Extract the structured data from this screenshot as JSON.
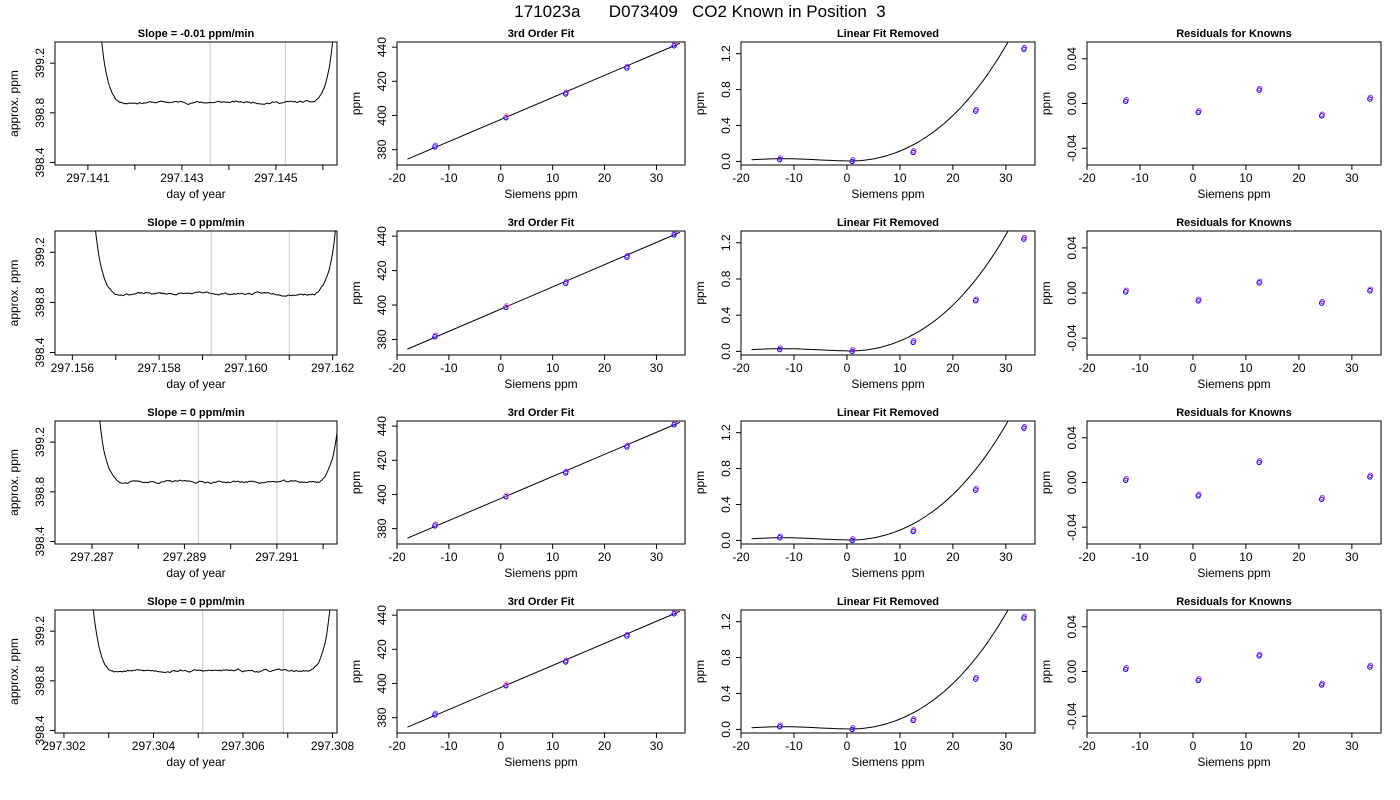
{
  "title": "171023a      D073409   CO2 Known in Position  3",
  "labels": {
    "trace_x": "day of year",
    "trace_y": "approx. ppm",
    "siemens_x": "Siemens ppm",
    "ppm_y": "ppm",
    "fit_title": "3rd Order Fit",
    "linear_title": "Linear Fit Removed",
    "resid_title": "Residuals for Knowns"
  },
  "colors": {
    "line": "#000000",
    "marker_blue": "#0000ff",
    "marker_violet": "#a020f0",
    "marker_pink": "#ff69b4",
    "vline": "#c8c8c8"
  },
  "chart_data": [
    {
      "type": "line",
      "title": "Slope =  -0.01  ppm/min",
      "xlabel": "day of year",
      "ylabel": "approx. ppm",
      "xlim": [
        297.1403,
        297.1463
      ],
      "ylim": [
        398.38,
        399.37
      ],
      "xticks": [
        297.141,
        297.143,
        297.145
      ],
      "xticks_unlabeled": [
        297.142,
        297.144,
        297.146
      ],
      "yticks": [
        398.4,
        398.8,
        399.2
      ],
      "vlines": [
        297.1436,
        297.1452
      ],
      "baseline": 398.885,
      "edge_start": 297.1417,
      "edge_end": 297.1458,
      "seed": 11
    },
    {
      "type": "line",
      "title": "Slope =  0  ppm/min",
      "xlabel": "day of year",
      "ylabel": "approx. ppm",
      "xlim": [
        297.1556,
        297.1621
      ],
      "ylim": [
        398.38,
        399.37
      ],
      "xticks": [
        297.156,
        297.158,
        297.16,
        297.162
      ],
      "xticks_unlabeled": [
        297.157,
        297.159,
        297.161
      ],
      "yticks": [
        398.4,
        398.8,
        399.2
      ],
      "vlines": [
        297.1592,
        297.161
      ],
      "baseline": 398.87,
      "edge_start": 297.157,
      "edge_end": 297.1616,
      "seed": 23
    },
    {
      "type": "line",
      "title": "Slope =  0  ppm/min",
      "xlabel": "day of year",
      "ylabel": "approx. ppm",
      "xlim": [
        297.2862,
        297.2923
      ],
      "ylim": [
        398.38,
        399.37
      ],
      "xticks": [
        297.287,
        297.289,
        297.291
      ],
      "xticks_unlabeled": [
        297.288,
        297.29,
        297.292
      ],
      "yticks": [
        398.4,
        398.8,
        399.2
      ],
      "vlines": [
        297.2893,
        297.291
      ],
      "baseline": 398.88,
      "edge_start": 297.2876,
      "edge_end": 297.2919,
      "seed": 37
    },
    {
      "type": "line",
      "title": "Slope =  0  ppm/min",
      "xlabel": "day of year",
      "ylabel": "approx. ppm",
      "xlim": [
        297.3018,
        297.3081
      ],
      "ylim": [
        398.38,
        399.37
      ],
      "xticks": [
        297.302,
        297.304,
        297.306,
        297.308
      ],
      "xticks_unlabeled": [
        297.303,
        297.305,
        297.307
      ],
      "yticks": [
        398.4,
        398.8,
        399.2
      ],
      "vlines": [
        297.3051,
        297.3069
      ],
      "baseline": 398.88,
      "edge_start": 297.3031,
      "edge_end": 297.3075,
      "seed": 53
    },
    {
      "type": "scatter",
      "title": "3rd Order Fit",
      "xlabel": "Siemens ppm",
      "ylabel": "ppm",
      "xlim": [
        -20,
        35.5
      ],
      "ylim": [
        371,
        443
      ],
      "xticks": [
        -20,
        -10,
        0,
        10,
        20,
        30
      ],
      "yticks": [
        380,
        400,
        420,
        440
      ],
      "points_x": [
        -12.7,
        1.0,
        12.5,
        24.3,
        33.4
      ],
      "points_y": [
        381.6,
        398.7,
        412.6,
        427.8,
        440.8
      ],
      "fit_x": [
        -18,
        34.5
      ],
      "fit_y": [
        374.4,
        442.2
      ]
    },
    {
      "type": "scatter",
      "title": "3rd Order Fit",
      "xlabel": "Siemens ppm",
      "ylabel": "ppm",
      "xlim": [
        -20,
        35.5
      ],
      "ylim": [
        371,
        443
      ],
      "xticks": [
        -20,
        -10,
        0,
        10,
        20,
        30
      ],
      "yticks": [
        380,
        400,
        420,
        440
      ],
      "points_x": [
        -12.7,
        1.0,
        12.5,
        24.3,
        33.4
      ],
      "points_y": [
        381.6,
        398.7,
        412.6,
        427.8,
        440.8
      ],
      "fit_x": [
        -18,
        34.5
      ],
      "fit_y": [
        374.4,
        442.2
      ]
    },
    {
      "type": "scatter",
      "title": "3rd Order Fit",
      "xlabel": "Siemens ppm",
      "ylabel": "ppm",
      "xlim": [
        -20,
        35.5
      ],
      "ylim": [
        371,
        443
      ],
      "xticks": [
        -20,
        -10,
        0,
        10,
        20,
        30
      ],
      "yticks": [
        380,
        400,
        420,
        440
      ],
      "points_x": [
        -12.7,
        1.0,
        12.5,
        24.3,
        33.4
      ],
      "points_y": [
        381.6,
        398.7,
        412.6,
        427.8,
        440.8
      ],
      "fit_x": [
        -18,
        34.5
      ],
      "fit_y": [
        374.4,
        442.2
      ]
    },
    {
      "type": "scatter",
      "title": "3rd Order Fit",
      "xlabel": "Siemens ppm",
      "ylabel": "ppm",
      "xlim": [
        -20,
        35.5
      ],
      "ylim": [
        371,
        443
      ],
      "xticks": [
        -20,
        -10,
        0,
        10,
        20,
        30
      ],
      "yticks": [
        380,
        400,
        420,
        440
      ],
      "points_x": [
        -12.7,
        1.0,
        12.5,
        24.3,
        33.4
      ],
      "points_y": [
        381.6,
        398.7,
        412.6,
        427.8,
        440.8
      ],
      "fit_x": [
        -18,
        34.5
      ],
      "fit_y": [
        374.4,
        442.2
      ]
    },
    {
      "type": "scatter",
      "title": "Linear Fit Removed",
      "xlabel": "Siemens ppm",
      "ylabel": "ppm",
      "xlim": [
        -20,
        35.5
      ],
      "ylim": [
        -0.04,
        1.33
      ],
      "xticks": [
        -20,
        -10,
        0,
        10,
        20,
        30
      ],
      "yticks": [
        0.0,
        0.4,
        0.8,
        1.2
      ],
      "points_x": [
        -12.7,
        1.0,
        12.5,
        24.3,
        33.4
      ],
      "points_y": [
        0.02,
        0.0,
        0.1,
        0.56,
        1.25
      ],
      "curve_coef": [
        0.0,
        0.001,
        0.000325
      ]
    },
    {
      "type": "scatter",
      "title": "Linear Fit Removed",
      "xlabel": "Siemens ppm",
      "ylabel": "ppm",
      "xlim": [
        -20,
        35.5
      ],
      "ylim": [
        -0.04,
        1.33
      ],
      "xticks": [
        -20,
        -10,
        0,
        10,
        20,
        30
      ],
      "yticks": [
        0.0,
        0.4,
        0.8,
        1.2
      ],
      "points_x": [
        -12.7,
        1.0,
        12.5,
        24.3,
        33.4
      ],
      "points_y": [
        0.02,
        0.0,
        0.1,
        0.56,
        1.24
      ],
      "curve_coef": [
        0.0,
        0.001,
        0.000322
      ]
    },
    {
      "type": "scatter",
      "title": "Linear Fit Removed",
      "xlabel": "Siemens ppm",
      "ylabel": "ppm",
      "xlim": [
        -20,
        35.5
      ],
      "ylim": [
        -0.04,
        1.33
      ],
      "xticks": [
        -20,
        -10,
        0,
        10,
        20,
        30
      ],
      "yticks": [
        0.0,
        0.4,
        0.8,
        1.2
      ],
      "points_x": [
        -12.7,
        1.0,
        12.5,
        24.3,
        33.4
      ],
      "points_y": [
        0.03,
        0.0,
        0.1,
        0.56,
        1.25
      ],
      "curve_coef": [
        0.0,
        0.001,
        0.000325
      ]
    },
    {
      "type": "scatter",
      "title": "Linear Fit Removed",
      "xlabel": "Siemens ppm",
      "ylabel": "ppm",
      "xlim": [
        -20,
        35.5
      ],
      "ylim": [
        -0.04,
        1.33
      ],
      "xticks": [
        -20,
        -10,
        0,
        10,
        20,
        30
      ],
      "yticks": [
        0.0,
        0.4,
        0.8,
        1.2
      ],
      "points_x": [
        -12.7,
        1.0,
        12.5,
        24.3,
        33.4
      ],
      "points_y": [
        0.03,
        0.0,
        0.1,
        0.56,
        1.24
      ],
      "curve_coef": [
        0.0,
        0.001,
        0.000322
      ]
    },
    {
      "type": "scatter",
      "title": "Residuals for Knowns",
      "xlabel": "Siemens ppm",
      "ylabel": "ppm",
      "xlim": [
        -20,
        35.5
      ],
      "ylim": [
        -0.055,
        0.055
      ],
      "xticks": [
        -20,
        -10,
        0,
        10,
        20,
        30
      ],
      "yticks": [
        -0.04,
        0.0,
        0.04
      ],
      "points_x": [
        -12.7,
        1.0,
        12.5,
        24.3,
        33.4
      ],
      "points_y": [
        0.002,
        -0.008,
        0.012,
        -0.011,
        0.004
      ]
    },
    {
      "type": "scatter",
      "title": "Residuals for Knowns",
      "xlabel": "Siemens ppm",
      "ylabel": "ppm",
      "xlim": [
        -20,
        35.5
      ],
      "ylim": [
        -0.055,
        0.055
      ],
      "xticks": [
        -20,
        -10,
        0,
        10,
        20,
        30
      ],
      "yticks": [
        -0.04,
        0.0,
        0.04
      ],
      "points_x": [
        -12.7,
        1.0,
        12.5,
        24.3,
        33.4
      ],
      "points_y": [
        0.001,
        -0.007,
        0.009,
        -0.009,
        0.002
      ]
    },
    {
      "type": "scatter",
      "title": "Residuals for Knowns",
      "xlabel": "Siemens ppm",
      "ylabel": "ppm",
      "xlim": [
        -20,
        35.5
      ],
      "ylim": [
        -0.055,
        0.055
      ],
      "xticks": [
        -20,
        -10,
        0,
        10,
        20,
        30
      ],
      "yticks": [
        -0.04,
        0.0,
        0.04
      ],
      "points_x": [
        -12.7,
        1.0,
        12.5,
        24.3,
        33.4
      ],
      "points_y": [
        0.002,
        -0.012,
        0.018,
        -0.015,
        0.005
      ]
    },
    {
      "type": "scatter",
      "title": "Residuals for Knowns",
      "xlabel": "Siemens ppm",
      "ylabel": "ppm",
      "xlim": [
        -20,
        35.5
      ],
      "ylim": [
        -0.055,
        0.055
      ],
      "xticks": [
        -20,
        -10,
        0,
        10,
        20,
        30
      ],
      "yticks": [
        -0.04,
        0.0,
        0.04
      ],
      "points_x": [
        -12.7,
        1.0,
        12.5,
        24.3,
        33.4
      ],
      "points_y": [
        0.002,
        -0.008,
        0.014,
        -0.012,
        0.004
      ]
    }
  ]
}
